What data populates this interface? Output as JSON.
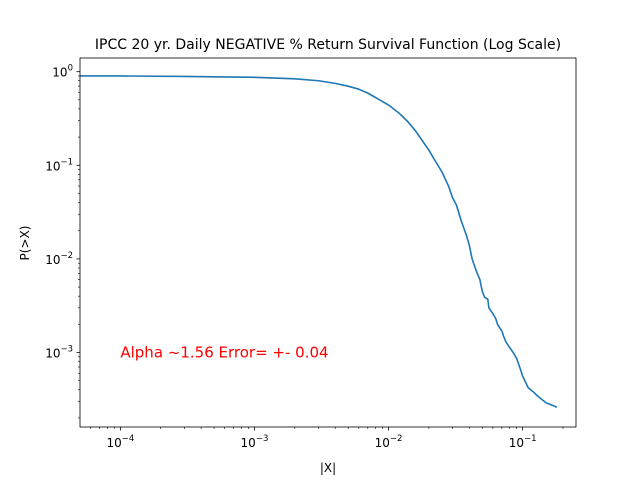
{
  "chart_data": {
    "type": "line",
    "title": "IPCC 20 yr. Daily NEGATIVE % Return Survival Function (Log Scale)",
    "xlabel": "|X|",
    "ylabel": "P(>X)",
    "xscale": "log",
    "yscale": "log",
    "xlim": [
      5e-05,
      0.25
    ],
    "ylim": [
      0.00016,
      1.4
    ],
    "grid": false,
    "x_ticks": [
      {
        "value": 0.0001,
        "base": "10",
        "exp": "−4"
      },
      {
        "value": 0.001,
        "base": "10",
        "exp": "−3"
      },
      {
        "value": 0.01,
        "base": "10",
        "exp": "−2"
      },
      {
        "value": 0.1,
        "base": "10",
        "exp": "−1"
      }
    ],
    "y_ticks": [
      {
        "value": 0.001,
        "base": "10",
        "exp": "−3"
      },
      {
        "value": 0.01,
        "base": "10",
        "exp": "−2"
      },
      {
        "value": 0.1,
        "base": "10",
        "exp": "−1"
      },
      {
        "value": 1,
        "base": "10",
        "exp": "0"
      }
    ],
    "series": [
      {
        "color": "#1f77b4",
        "x": [
          5e-05,
          0.0001,
          0.0003,
          0.001,
          0.002,
          0.003,
          0.004,
          0.005,
          0.006,
          0.007,
          0.008,
          0.01,
          0.012,
          0.014,
          0.016,
          0.018,
          0.02,
          0.022,
          0.025,
          0.028,
          0.03,
          0.032,
          0.035,
          0.038,
          0.04,
          0.042,
          0.045,
          0.048,
          0.05,
          0.052,
          0.055,
          0.056,
          0.06,
          0.063,
          0.065,
          0.068,
          0.07,
          0.072,
          0.075,
          0.08,
          0.085,
          0.09,
          0.095,
          0.1,
          0.11,
          0.12,
          0.13,
          0.15,
          0.17,
          0.18
        ],
        "y": [
          0.9,
          0.9,
          0.89,
          0.87,
          0.84,
          0.8,
          0.75,
          0.7,
          0.65,
          0.59,
          0.53,
          0.44,
          0.36,
          0.29,
          0.23,
          0.18,
          0.145,
          0.115,
          0.085,
          0.06,
          0.045,
          0.038,
          0.025,
          0.018,
          0.014,
          0.01,
          0.0075,
          0.006,
          0.0045,
          0.0039,
          0.0037,
          0.003,
          0.0026,
          0.0023,
          0.002,
          0.0018,
          0.0017,
          0.0015,
          0.0013,
          0.00113,
          0.001,
          0.00087,
          0.0007,
          0.00056,
          0.00042,
          0.00038,
          0.00034,
          0.00029,
          0.00027,
          0.00026
        ]
      }
    ],
    "annotations": [
      {
        "text": "Alpha ~1.56  Error= +- 0.04",
        "x": 0.0001,
        "y": 0.001,
        "color": "#ff0000"
      }
    ]
  }
}
